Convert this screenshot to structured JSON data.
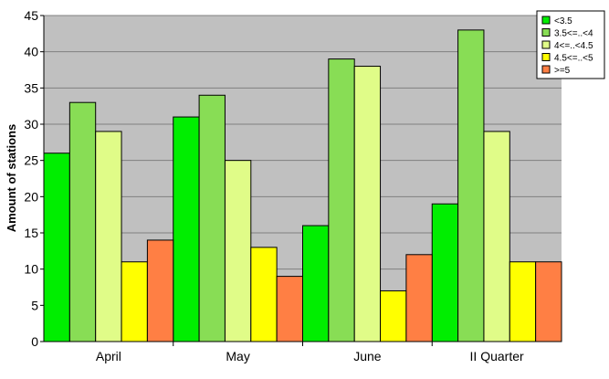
{
  "chart_data": {
    "type": "bar",
    "title": "",
    "xlabel": "",
    "ylabel": "Amount of stations",
    "ylim": [
      0,
      45
    ],
    "yticks": [
      0,
      5,
      10,
      15,
      20,
      25,
      30,
      35,
      40,
      45
    ],
    "categories": [
      "April",
      "May",
      "June",
      "II Quarter"
    ],
    "series": [
      {
        "name": "<3.5",
        "color": "#00ee00",
        "values": [
          26,
          31,
          16,
          19
        ]
      },
      {
        "name": "3.5<=..<4",
        "color": "#88dd55",
        "values": [
          33,
          34,
          39,
          43
        ]
      },
      {
        "name": "4<=..<4.5",
        "color": "#e0fc88",
        "values": [
          29,
          25,
          38,
          29
        ]
      },
      {
        "name": "4.5<=..<5",
        "color": "#ffff00",
        "values": [
          11,
          13,
          7,
          11
        ]
      },
      {
        "name": ">=5",
        "color": "#ff7f44",
        "values": [
          14,
          9,
          12,
          11
        ]
      }
    ],
    "grid": true,
    "plot_background": "#c0c0c0",
    "legend_position": "top-right"
  }
}
